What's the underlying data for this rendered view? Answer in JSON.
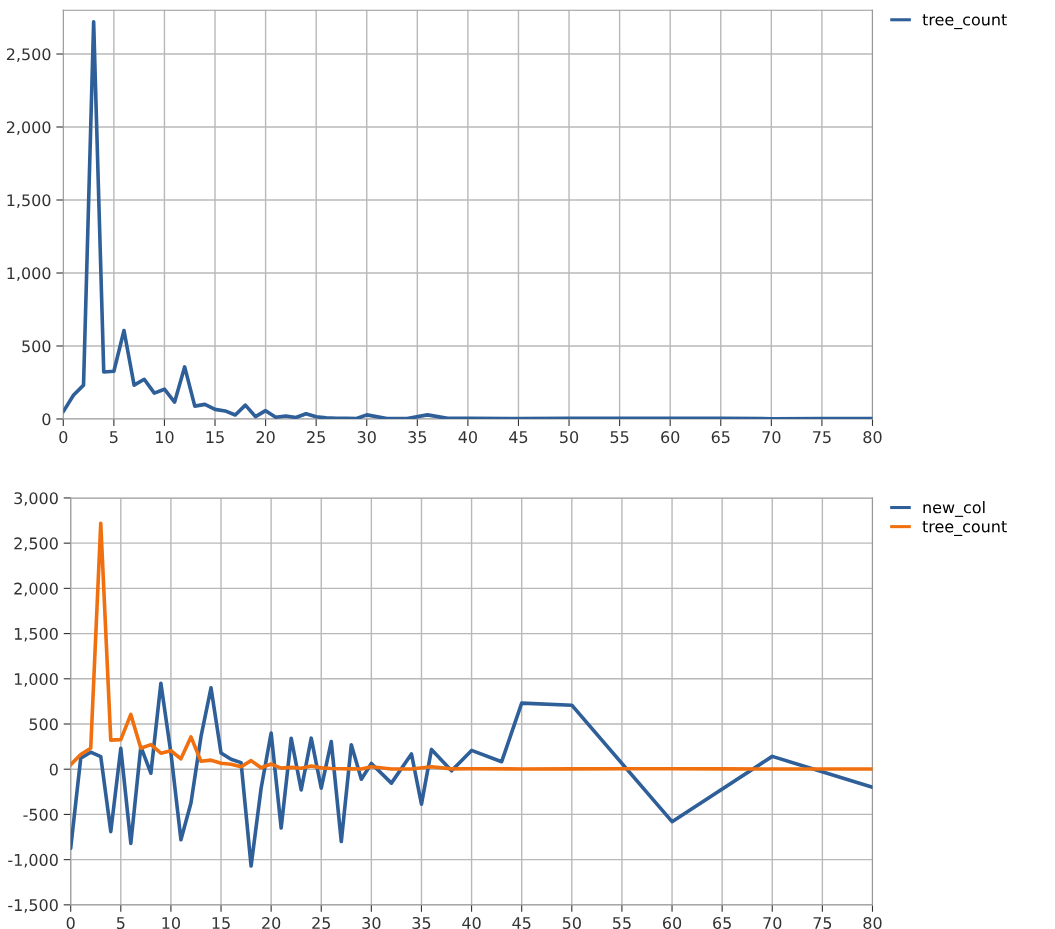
{
  "chart_data": [
    {
      "type": "line",
      "xlim": [
        0,
        80
      ],
      "xticks": [
        0,
        5,
        10,
        15,
        20,
        25,
        30,
        35,
        40,
        45,
        50,
        55,
        60,
        65,
        70,
        75,
        80
      ],
      "ylim": [
        0,
        2800
      ],
      "yticks": [
        0,
        500,
        {
          "value": 1000,
          "label": "1,000"
        },
        {
          "value": 1500,
          "label": "1,500"
        },
        {
          "value": 2000,
          "label": "2,000"
        },
        {
          "value": 2500,
          "label": "2,500"
        }
      ],
      "grid": true,
      "legend": "top right",
      "marker": "none",
      "series": [
        {
          "name": "tree_count",
          "color": "#2f5f98",
          "x": [
            0,
            1,
            2,
            3,
            4,
            5,
            6,
            7,
            8,
            9,
            10,
            11,
            12,
            13,
            14,
            15,
            16,
            17,
            18,
            19,
            20,
            21,
            22,
            23,
            24,
            25,
            26,
            27,
            28,
            29,
            30,
            32,
            34,
            36,
            38,
            40,
            45,
            50,
            55,
            60,
            65,
            70,
            75,
            80
          ],
          "values": [
            50,
            163,
            232,
            2720,
            322,
            327,
            606,
            232,
            272,
            177,
            204,
            115,
            357,
            88,
            100,
            66,
            55,
            27,
            95,
            16,
            57,
            12,
            20,
            10,
            36,
            15,
            8,
            5,
            4,
            3,
            28,
            3,
            3,
            28,
            4,
            5,
            3,
            4,
            5,
            5,
            4,
            2,
            3,
            3
          ]
        }
      ]
    },
    {
      "type": "line",
      "xlim": [
        0,
        80
      ],
      "xticks": [
        0,
        5,
        10,
        15,
        20,
        25,
        30,
        35,
        40,
        45,
        50,
        55,
        60,
        65,
        70,
        75,
        80
      ],
      "ylim": [
        -1500,
        3000
      ],
      "yticks": [
        {
          "value": -1500,
          "label": "-1,500"
        },
        {
          "value": -1000,
          "label": "-1,000"
        },
        {
          "value": -500,
          "label": "-500"
        },
        0,
        500,
        {
          "value": 1000,
          "label": "1,000"
        },
        {
          "value": 1500,
          "label": "1,500"
        },
        {
          "value": 2000,
          "label": "2,000"
        },
        {
          "value": 2500,
          "label": "2,500"
        },
        {
          "value": 3000,
          "label": "3,000"
        }
      ],
      "grid": true,
      "legend": "top right",
      "marker": "none",
      "series": [
        {
          "name": "new_col",
          "color": "#2f5f98",
          "x": [
            0,
            1,
            2,
            3,
            4,
            5,
            6,
            7,
            8,
            9,
            10,
            11,
            12,
            13,
            14,
            15,
            16,
            17,
            18,
            19,
            20,
            21,
            22,
            23,
            24,
            25,
            26,
            27,
            28,
            29,
            30,
            32,
            34,
            35,
            36,
            38,
            40,
            43,
            45,
            50,
            60,
            70,
            80
          ],
          "values": [
            -874,
            121,
            188,
            140,
            -690,
            230,
            -820,
            250,
            -44,
            950,
            180,
            -780,
            -373,
            360,
            900,
            180,
            110,
            73,
            -1070,
            -210,
            400,
            -650,
            343,
            -229,
            343,
            -210,
            305,
            -800,
            270,
            -110,
            64,
            -154,
            169,
            -386,
            219,
            -18,
            208,
            83,
            731,
            708,
            -580,
            142,
            -200
          ]
        },
        {
          "name": "tree_count",
          "color": "#f0700f",
          "x": [
            0,
            1,
            2,
            3,
            4,
            5,
            6,
            7,
            8,
            9,
            10,
            11,
            12,
            13,
            14,
            15,
            16,
            17,
            18,
            19,
            20,
            21,
            22,
            23,
            24,
            25,
            26,
            27,
            28,
            29,
            30,
            32,
            34,
            36,
            38,
            40,
            45,
            50,
            55,
            60,
            65,
            70,
            75,
            80
          ],
          "values": [
            50,
            163,
            232,
            2720,
            322,
            327,
            606,
            232,
            272,
            177,
            204,
            115,
            357,
            88,
            100,
            66,
            55,
            27,
            95,
            16,
            57,
            12,
            20,
            10,
            36,
            15,
            8,
            5,
            4,
            3,
            28,
            3,
            3,
            28,
            4,
            5,
            3,
            4,
            5,
            5,
            4,
            2,
            3,
            3
          ]
        }
      ]
    }
  ]
}
